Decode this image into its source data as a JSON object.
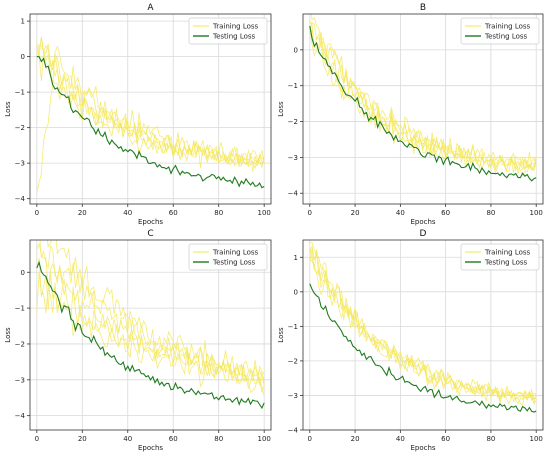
{
  "colors": {
    "training": "#f5e85a",
    "testing": "#1e7b1e",
    "grid": "#d9d9d9",
    "frame": "#333333"
  },
  "chart_data": [
    {
      "type": "line",
      "title": "A",
      "xlabel": "Epochs",
      "ylabel": "Loss",
      "xlim": [
        -3,
        103
      ],
      "ylim": [
        -4.15,
        1.2
      ],
      "xticks": [
        0,
        20,
        40,
        60,
        80,
        100
      ],
      "yticks": [
        1,
        0,
        -1,
        -2,
        -3,
        -4
      ],
      "grid": true,
      "legend_position": "top-right",
      "series": [
        {
          "name": "Training Loss",
          "shape": {
            "start": 0.4,
            "end": -3.1,
            "k": 3.0,
            "noise": 0.35,
            "spread": 0.6,
            "extra_low": -4.1
          }
        },
        {
          "name": "Testing Loss",
          "shape": {
            "start": 0.1,
            "end": -3.75,
            "k": 3.2,
            "noise": 0.15
          }
        }
      ]
    },
    {
      "type": "line",
      "title": "B",
      "xlabel": "Epochs",
      "ylabel": "Loss",
      "xlim": [
        -3,
        103
      ],
      "ylim": [
        -4.3,
        1.0
      ],
      "xticks": [
        0,
        20,
        40,
        60,
        80,
        100
      ],
      "yticks": [
        0,
        -1,
        -2,
        -3,
        -4
      ],
      "grid": true,
      "legend_position": "top-right",
      "series": [
        {
          "name": "Training Loss",
          "shape": {
            "start": 0.7,
            "end": -3.4,
            "k": 3.2,
            "noise": 0.35,
            "spread": 0.4
          }
        },
        {
          "name": "Testing Loss",
          "shape": {
            "start": 0.6,
            "end": -3.7,
            "k": 3.3,
            "noise": 0.15
          }
        }
      ]
    },
    {
      "type": "line",
      "title": "C",
      "xlabel": "Epochs",
      "ylabel": "Loss",
      "xlim": [
        -3,
        103
      ],
      "ylim": [
        -4.4,
        0.9
      ],
      "xticks": [
        0,
        20,
        40,
        60,
        80,
        100
      ],
      "yticks": [
        0,
        -1,
        -2,
        -3,
        -4
      ],
      "grid": true,
      "legend_position": "top-right",
      "series": [
        {
          "name": "Training Loss",
          "shape": {
            "start": 0.6,
            "end": -3.5,
            "k": 2.0,
            "noise": 0.45,
            "spread": 1.4
          }
        },
        {
          "name": "Testing Loss",
          "shape": {
            "start": 0.3,
            "end": -3.85,
            "k": 3.1,
            "noise": 0.15
          }
        }
      ]
    },
    {
      "type": "line",
      "title": "D",
      "xlabel": "Epochs",
      "ylabel": "Loss",
      "xlim": [
        -3,
        103
      ],
      "ylim": [
        -4.0,
        1.5
      ],
      "xticks": [
        0,
        20,
        40,
        60,
        80,
        100
      ],
      "yticks": [
        1,
        0,
        -1,
        -2,
        -3,
        -4
      ],
      "grid": true,
      "legend_position": "top-right",
      "series": [
        {
          "name": "Training Loss",
          "shape": {
            "start": 1.2,
            "end": -3.3,
            "k": 3.0,
            "noise": 0.3,
            "spread": 0.3
          }
        },
        {
          "name": "Testing Loss",
          "shape": {
            "start": 0.25,
            "end": -3.55,
            "k": 3.3,
            "noise": 0.13
          }
        }
      ]
    }
  ]
}
